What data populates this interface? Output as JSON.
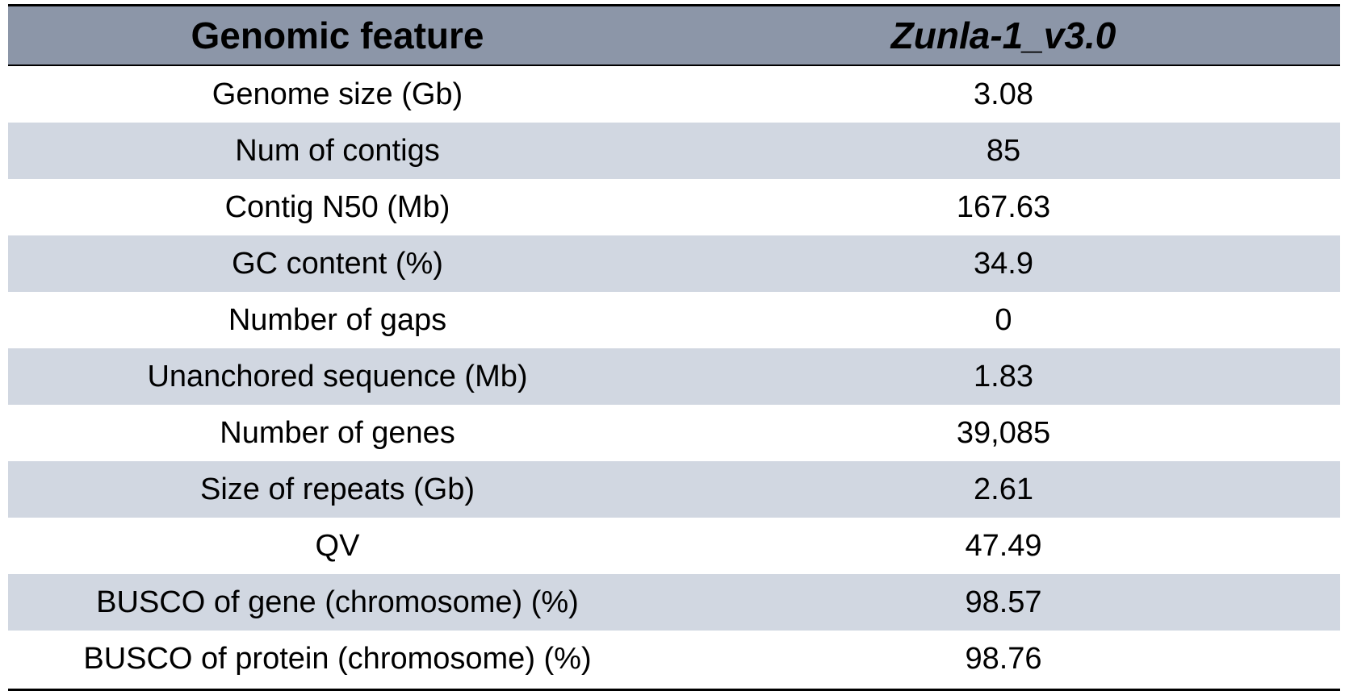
{
  "table": {
    "header": {
      "feature": "Genomic feature",
      "assembly": "Zunla-1_v3.0"
    },
    "rows": [
      {
        "feature": "Genome size (Gb)",
        "value": "3.08"
      },
      {
        "feature": "Num of contigs",
        "value": "85"
      },
      {
        "feature": "Contig N50 (Mb)",
        "value": "167.63"
      },
      {
        "feature": "GC content (%)",
        "value": "34.9"
      },
      {
        "feature": "Number of gaps",
        "value": "0"
      },
      {
        "feature": "Unanchored sequence (Mb)",
        "value": "1.83"
      },
      {
        "feature": "Number of genes",
        "value": "39,085"
      },
      {
        "feature": "Size of repeats (Gb)",
        "value": "2.61"
      },
      {
        "feature": "QV",
        "value": "47.49"
      },
      {
        "feature": "BUSCO of gene (chromosome) (%)",
        "value": "98.57"
      },
      {
        "feature": "BUSCO of protein (chromosome) (%)",
        "value": "98.76"
      }
    ],
    "colors": {
      "header_bg": "#8c96a8",
      "stripe_bg": "#d1d7e1",
      "plain_bg": "#ffffff",
      "rule": "#000000"
    }
  }
}
